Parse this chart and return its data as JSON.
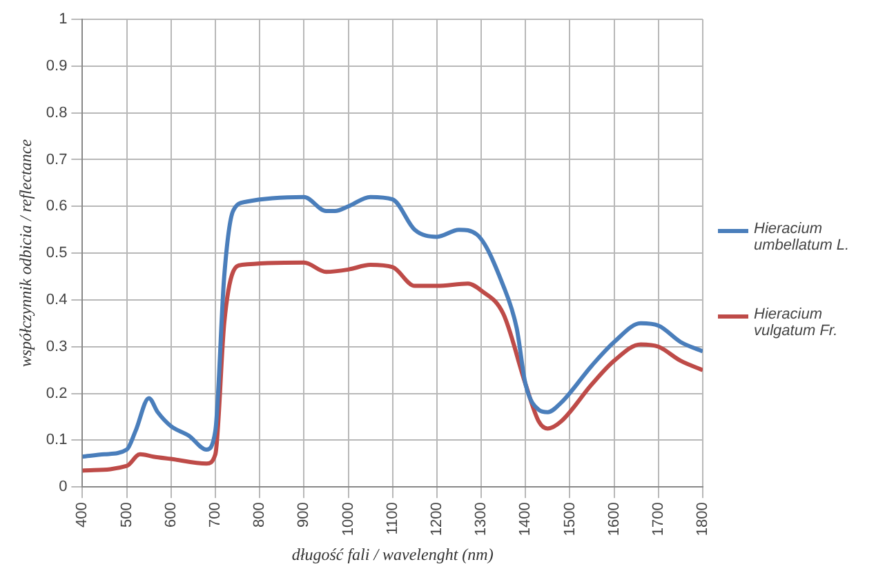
{
  "chart_data": {
    "type": "line",
    "xlabel": "długość fali / wavelenght (nm)",
    "ylabel": "współczynnik odbicia / reflectance",
    "xlim": [
      400,
      1800
    ],
    "xticks": [
      400,
      500,
      600,
      700,
      800,
      900,
      1000,
      1100,
      1200,
      1300,
      1400,
      1500,
      1600,
      1700,
      1800
    ],
    "ylim": [
      0,
      1
    ],
    "yticks": [
      0,
      0.1,
      0.2,
      0.3,
      0.4,
      0.5,
      0.6,
      0.7,
      0.8,
      0.9,
      1
    ],
    "grid": true,
    "legend": "right",
    "marker": "none",
    "line_style": "solid",
    "series": [
      {
        "name": "Hieracium umbellatum L.",
        "color": "#4a7ebb",
        "x": [
          400,
          450,
          500,
          520,
          550,
          570,
          600,
          640,
          680,
          700,
          720,
          740,
          770,
          900,
          950,
          970,
          1000,
          1050,
          1100,
          1150,
          1200,
          1250,
          1290,
          1350,
          1380,
          1400,
          1430,
          1450,
          1480,
          1550,
          1600,
          1660,
          1700,
          1750,
          1800
        ],
        "values": [
          0.065,
          0.07,
          0.08,
          0.12,
          0.19,
          0.16,
          0.13,
          0.11,
          0.08,
          0.12,
          0.45,
          0.59,
          0.61,
          0.62,
          0.59,
          0.59,
          0.6,
          0.62,
          0.615,
          0.55,
          0.535,
          0.55,
          0.54,
          0.43,
          0.34,
          0.22,
          0.165,
          0.16,
          0.18,
          0.26,
          0.31,
          0.35,
          0.345,
          0.31,
          0.29
        ]
      },
      {
        "name": "Hieracium vulgatum Fr.",
        "color": "#be4b48",
        "x": [
          400,
          500,
          530,
          560,
          600,
          680,
          700,
          720,
          740,
          760,
          900,
          950,
          1000,
          1050,
          1100,
          1150,
          1200,
          1270,
          1300,
          1350,
          1400,
          1430,
          1450,
          1480,
          1550,
          1600,
          1660,
          1700,
          1750,
          1800
        ],
        "values": [
          0.035,
          0.045,
          0.07,
          0.065,
          0.06,
          0.05,
          0.07,
          0.35,
          0.46,
          0.475,
          0.48,
          0.46,
          0.465,
          0.475,
          0.47,
          0.43,
          0.43,
          0.435,
          0.42,
          0.37,
          0.22,
          0.14,
          0.125,
          0.14,
          0.22,
          0.27,
          0.305,
          0.3,
          0.27,
          0.25
        ]
      }
    ]
  }
}
